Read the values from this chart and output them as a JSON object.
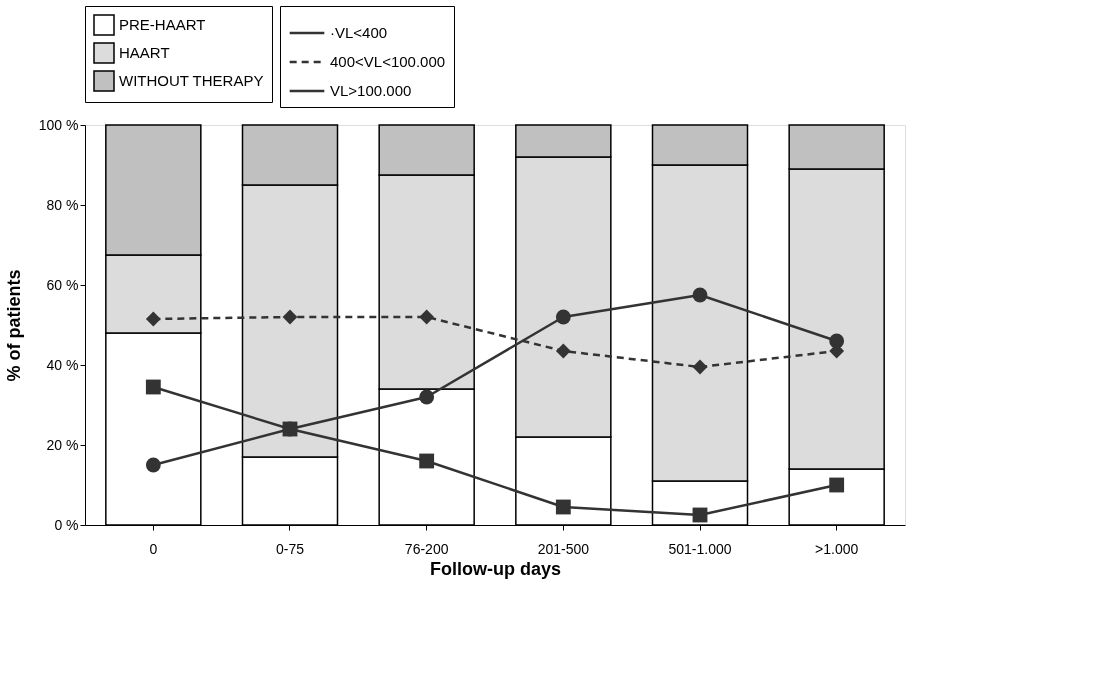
{
  "chart_data": {
    "type": "bar",
    "stacked": true,
    "xlabel": "Follow-up days",
    "ylabel": "% of patients",
    "categories": [
      "0",
      "0-75",
      "76-200",
      "201-500",
      "501-1.000",
      ">1.000"
    ],
    "series": [
      {
        "name": "PRE-HAART",
        "color": "#ffffff",
        "values": [
          48,
          17,
          34,
          22,
          11,
          14
        ]
      },
      {
        "name": "HAART",
        "color": "#dcdcdc",
        "values": [
          19.5,
          68,
          53.5,
          70,
          79,
          75
        ]
      },
      {
        "name": "WITHOUT THERAPY",
        "color": "#c0c0c0",
        "values": [
          32.5,
          15,
          12.5,
          8,
          10,
          11
        ]
      },
      {
        "name": "·VL<400",
        "type": "line",
        "color": "#333333",
        "marker": "circle",
        "line_style": "solid",
        "values": [
          15,
          24,
          32,
          52,
          57.5,
          46
        ]
      },
      {
        "name": "400<VL<100.000",
        "type": "line",
        "color": "#333333",
        "marker": "diamond",
        "line_style": "dashed",
        "values": [
          51.5,
          52,
          52,
          43.5,
          39.5,
          43.5
        ]
      },
      {
        "name": "VL>100.000",
        "type": "line",
        "color": "#333333",
        "marker": "square",
        "line_style": "solid",
        "values": [
          34.5,
          24,
          16,
          4.5,
          2.5,
          10
        ]
      }
    ],
    "ylim": [
      0,
      100
    ],
    "yticks": [
      {
        "value": 0,
        "label": "0 %"
      },
      {
        "value": 20,
        "label": "20 %"
      },
      {
        "value": 40,
        "label": "40 %"
      },
      {
        "value": 60,
        "label": "60 %"
      },
      {
        "value": 80,
        "label": "80 %"
      },
      {
        "value": 100,
        "label": "100 %"
      }
    ],
    "grid": false,
    "legend": "top"
  }
}
